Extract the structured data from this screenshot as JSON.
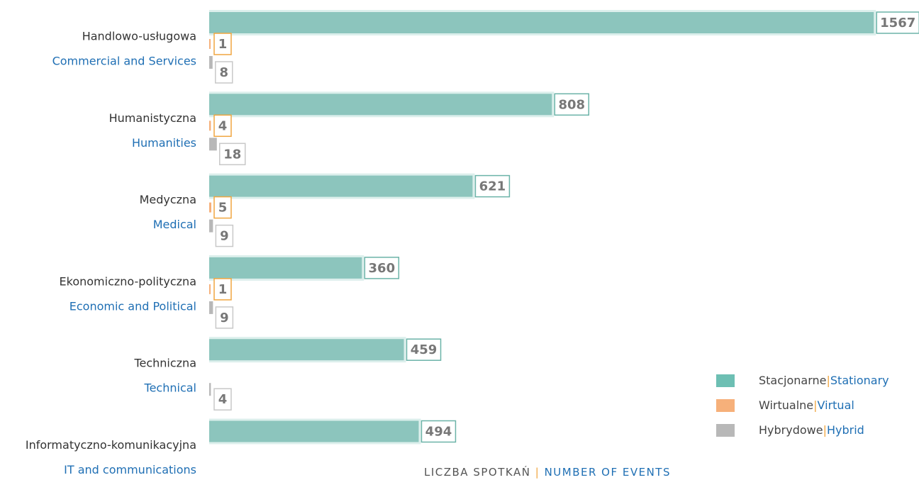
{
  "chart_data": {
    "type": "bar",
    "orientation": "horizontal",
    "categories": [
      "Handlowo-usługowa",
      "Humanistyczna",
      "Medyczna",
      "Ekonomiczno-polityczna",
      "Techniczna",
      "Informatyczno-komunikacyjna"
    ],
    "categories_en": [
      "Commercial and Services",
      "Humanities",
      "Medical",
      "Economic and Political",
      "Technical",
      "IT and communications"
    ],
    "series": [
      {
        "name": "Stacjonarne",
        "name_en": "Stationary",
        "color": "#8cc5bd",
        "values": [
          1567,
          808,
          621,
          360,
          459,
          494
        ]
      },
      {
        "name": "Wirtualne",
        "name_en": "Virtual",
        "color": "#f6b07a",
        "values": [
          1,
          4,
          5,
          1,
          null,
          null
        ]
      },
      {
        "name": "Hybrydowe",
        "name_en": "Hybrid",
        "color": "#b8b8b8",
        "values": [
          8,
          18,
          9,
          9,
          4,
          null
        ]
      }
    ],
    "separator": "|",
    "x_label": "LICZBA SPOTKAŃ",
    "x_label_en": "NUMBER OF EVENTS",
    "xlim": [
      0,
      1580
    ],
    "legend": "lower right"
  }
}
